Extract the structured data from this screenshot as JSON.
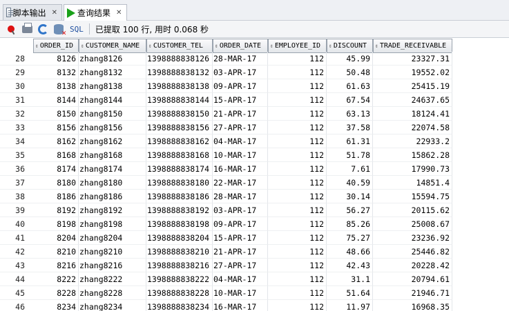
{
  "tabs": [
    {
      "label": "脚本输出",
      "icon": "script-output-icon",
      "active": false
    },
    {
      "label": "查询结果",
      "icon": "run-green-icon",
      "active": true
    }
  ],
  "toolbar": {
    "icons": [
      "pin-icon",
      "print-icon",
      "refresh-icon",
      "clear-icon"
    ],
    "sql_label": "SQL",
    "status": "已提取 100 行, 用时 0.068 秒"
  },
  "grid": {
    "columns": [
      "ORDER_ID",
      "CUSTOMER_NAME",
      "CUSTOMER_TEL",
      "ORDER_DATE",
      "EMPLOYEE_ID",
      "DISCOUNT",
      "TRADE_RECEIVABLE"
    ],
    "rows": [
      [
        "28",
        "8126",
        "zhang8126",
        "1398888838126",
        "28-MAR-17",
        "112",
        "45.99",
        "23327.31"
      ],
      [
        "29",
        "8132",
        "zhang8132",
        "1398888838132",
        "03-APR-17",
        "112",
        "50.48",
        "19552.02"
      ],
      [
        "30",
        "8138",
        "zhang8138",
        "1398888838138",
        "09-APR-17",
        "112",
        "61.63",
        "25415.19"
      ],
      [
        "31",
        "8144",
        "zhang8144",
        "1398888838144",
        "15-APR-17",
        "112",
        "67.54",
        "24637.65"
      ],
      [
        "32",
        "8150",
        "zhang8150",
        "1398888838150",
        "21-APR-17",
        "112",
        "63.13",
        "18124.41"
      ],
      [
        "33",
        "8156",
        "zhang8156",
        "1398888838156",
        "27-APR-17",
        "112",
        "37.58",
        "22074.58"
      ],
      [
        "34",
        "8162",
        "zhang8162",
        "1398888838162",
        "04-MAR-17",
        "112",
        "61.31",
        "22933.2"
      ],
      [
        "35",
        "8168",
        "zhang8168",
        "1398888838168",
        "10-MAR-17",
        "112",
        "51.78",
        "15862.28"
      ],
      [
        "36",
        "8174",
        "zhang8174",
        "1398888838174",
        "16-MAR-17",
        "112",
        "7.61",
        "17990.73"
      ],
      [
        "37",
        "8180",
        "zhang8180",
        "1398888838180",
        "22-MAR-17",
        "112",
        "40.59",
        "14851.4"
      ],
      [
        "38",
        "8186",
        "zhang8186",
        "1398888838186",
        "28-MAR-17",
        "112",
        "30.14",
        "15594.75"
      ],
      [
        "39",
        "8192",
        "zhang8192",
        "1398888838192",
        "03-APR-17",
        "112",
        "56.27",
        "20115.62"
      ],
      [
        "40",
        "8198",
        "zhang8198",
        "1398888838198",
        "09-APR-17",
        "112",
        "85.26",
        "25008.67"
      ],
      [
        "41",
        "8204",
        "zhang8204",
        "1398888838204",
        "15-APR-17",
        "112",
        "75.27",
        "23236.92"
      ],
      [
        "42",
        "8210",
        "zhang8210",
        "1398888838210",
        "21-APR-17",
        "112",
        "48.66",
        "25446.82"
      ],
      [
        "43",
        "8216",
        "zhang8216",
        "1398888838216",
        "27-APR-17",
        "112",
        "42.43",
        "20228.42"
      ],
      [
        "44",
        "8222",
        "zhang8222",
        "1398888838222",
        "04-MAR-17",
        "112",
        "31.1",
        "20794.61"
      ],
      [
        "45",
        "8228",
        "zhang8228",
        "1398888838228",
        "10-MAR-17",
        "112",
        "51.64",
        "21946.71"
      ],
      [
        "46",
        "8234",
        "zhang8234",
        "1398888838234",
        "16-MAR-17",
        "112",
        "11.97",
        "16968.35"
      ]
    ]
  }
}
